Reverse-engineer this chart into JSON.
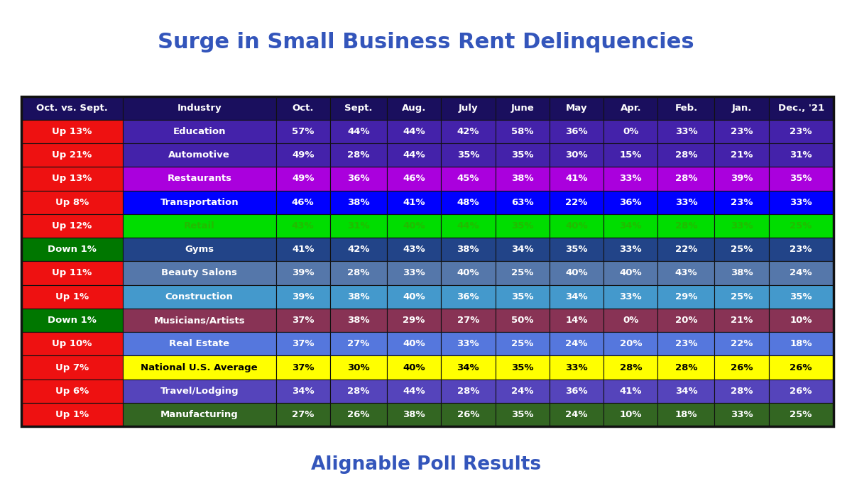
{
  "title": "Surge in Small Business Rent Delinquencies",
  "subtitle": "Alignable Poll Results",
  "title_color": "#3355BB",
  "subtitle_color": "#3355BB",
  "header": [
    "Oct. vs. Sept.",
    "Industry",
    "Oct.",
    "Sept.",
    "Aug.",
    "July",
    "June",
    "May",
    "Apr.",
    "Feb.",
    "Jan.",
    "Dec., '21"
  ],
  "rows": [
    {
      "col0": "Up 13%",
      "col1": "Education",
      "values": [
        "57%",
        "44%",
        "44%",
        "42%",
        "58%",
        "36%",
        "0%",
        "33%",
        "23%",
        "23%"
      ],
      "col0_bg": "#EE1111",
      "col1_bg": "#4422AA",
      "col0_fg": "#FFFFFF",
      "col1_fg": "#FFFFFF",
      "val_fg": "#FFFFFF",
      "row_bg": "#4422AA"
    },
    {
      "col0": "Up 21%",
      "col1": "Automotive",
      "values": [
        "49%",
        "28%",
        "44%",
        "35%",
        "35%",
        "30%",
        "15%",
        "28%",
        "21%",
        "31%"
      ],
      "col0_bg": "#EE1111",
      "col1_bg": "#4422AA",
      "col0_fg": "#FFFFFF",
      "col1_fg": "#FFFFFF",
      "val_fg": "#FFFFFF",
      "row_bg": "#4422AA"
    },
    {
      "col0": "Up 13%",
      "col1": "Restaurants",
      "values": [
        "49%",
        "36%",
        "46%",
        "45%",
        "38%",
        "41%",
        "33%",
        "28%",
        "39%",
        "35%"
      ],
      "col0_bg": "#EE1111",
      "col1_bg": "#AA00DD",
      "col0_fg": "#FFFFFF",
      "col1_fg": "#FFFFFF",
      "val_fg": "#FFFFFF",
      "row_bg": "#AA00DD"
    },
    {
      "col0": "Up 8%",
      "col1": "Transportation",
      "values": [
        "46%",
        "38%",
        "41%",
        "48%",
        "63%",
        "22%",
        "36%",
        "33%",
        "23%",
        "33%"
      ],
      "col0_bg": "#EE1111",
      "col1_bg": "#0000FF",
      "col0_fg": "#FFFFFF",
      "col1_fg": "#FFFFFF",
      "val_fg": "#FFFFFF",
      "row_bg": "#0000FF"
    },
    {
      "col0": "Up 12%",
      "col1": "Retail",
      "values": [
        "43%",
        "31%",
        "40%",
        "44%",
        "35%",
        "40%",
        "34%",
        "28%",
        "33%",
        "25%"
      ],
      "col0_bg": "#EE1111",
      "col1_bg": "#00DD00",
      "col0_fg": "#FFFFFF",
      "col1_fg": "#22BB00",
      "val_fg": "#22BB00",
      "row_bg": "#00DD00"
    },
    {
      "col0": "Down 1%",
      "col1": "Gyms",
      "values": [
        "41%",
        "42%",
        "43%",
        "38%",
        "34%",
        "35%",
        "33%",
        "22%",
        "25%",
        "23%"
      ],
      "col0_bg": "#007700",
      "col1_bg": "#224488",
      "col0_fg": "#FFFFFF",
      "col1_fg": "#FFFFFF",
      "val_fg": "#FFFFFF",
      "row_bg": "#224488"
    },
    {
      "col0": "Up 11%",
      "col1": "Beauty Salons",
      "values": [
        "39%",
        "28%",
        "33%",
        "40%",
        "25%",
        "40%",
        "40%",
        "43%",
        "38%",
        "24%"
      ],
      "col0_bg": "#EE1111",
      "col1_bg": "#5577AA",
      "col0_fg": "#FFFFFF",
      "col1_fg": "#FFFFFF",
      "val_fg": "#FFFFFF",
      "row_bg": "#5577AA"
    },
    {
      "col0": "Up 1%",
      "col1": "Construction",
      "values": [
        "39%",
        "38%",
        "40%",
        "36%",
        "35%",
        "34%",
        "33%",
        "29%",
        "25%",
        "35%"
      ],
      "col0_bg": "#EE1111",
      "col1_bg": "#4499CC",
      "col0_fg": "#FFFFFF",
      "col1_fg": "#FFFFFF",
      "val_fg": "#FFFFFF",
      "row_bg": "#4499CC"
    },
    {
      "col0": "Down 1%",
      "col1": "Musicians/Artists",
      "values": [
        "37%",
        "38%",
        "29%",
        "27%",
        "50%",
        "14%",
        "0%",
        "20%",
        "21%",
        "10%"
      ],
      "col0_bg": "#007700",
      "col1_bg": "#883355",
      "col0_fg": "#FFFFFF",
      "col1_fg": "#FFFFFF",
      "val_fg": "#FFFFFF",
      "row_bg": "#883355"
    },
    {
      "col0": "Up 10%",
      "col1": "Real Estate",
      "values": [
        "37%",
        "27%",
        "40%",
        "33%",
        "25%",
        "24%",
        "20%",
        "23%",
        "22%",
        "18%"
      ],
      "col0_bg": "#EE1111",
      "col1_bg": "#5577DD",
      "col0_fg": "#FFFFFF",
      "col1_fg": "#FFFFFF",
      "val_fg": "#FFFFFF",
      "row_bg": "#5577DD"
    },
    {
      "col0": "Up 7%",
      "col1": "National U.S. Average",
      "values": [
        "37%",
        "30%",
        "40%",
        "34%",
        "35%",
        "33%",
        "28%",
        "28%",
        "26%",
        "26%"
      ],
      "col0_bg": "#EE1111",
      "col1_bg": "#FFFF00",
      "col0_fg": "#FFFFFF",
      "col1_fg": "#000000",
      "val_fg": "#000000",
      "row_bg": "#FFFF00"
    },
    {
      "col0": "Up 6%",
      "col1": "Travel/Lodging",
      "values": [
        "34%",
        "28%",
        "44%",
        "28%",
        "24%",
        "36%",
        "41%",
        "34%",
        "28%",
        "26%"
      ],
      "col0_bg": "#EE1111",
      "col1_bg": "#5544BB",
      "col0_fg": "#FFFFFF",
      "col1_fg": "#FFFFFF",
      "val_fg": "#FFFFFF",
      "row_bg": "#5544BB"
    },
    {
      "col0": "Up 1%",
      "col1": "Manufacturing",
      "values": [
        "27%",
        "26%",
        "38%",
        "26%",
        "35%",
        "24%",
        "10%",
        "18%",
        "33%",
        "25%"
      ],
      "col0_bg": "#EE1111",
      "col1_bg": "#336622",
      "col0_fg": "#FFFFFF",
      "col1_fg": "#FFFFFF",
      "val_fg": "#FFFFFF",
      "row_bg": "#336622"
    }
  ],
  "header_bg": "#1A0F5E",
  "header_fg": "#FFFFFF",
  "border_color": "#111111"
}
